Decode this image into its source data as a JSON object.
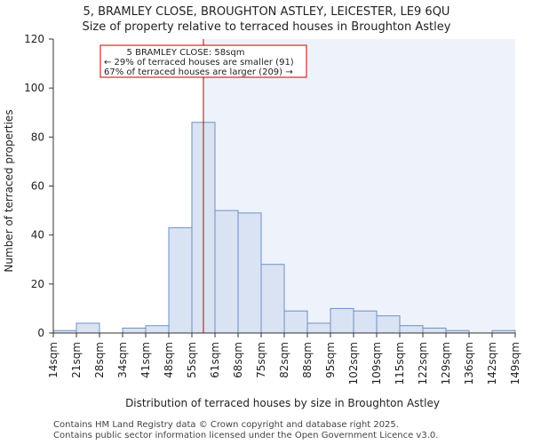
{
  "chart_data": {
    "type": "bar",
    "title": [
      "5, BRAMLEY CLOSE, BROUGHTON ASTLEY, LEICESTER, LE9 6QU",
      "Size of property relative to terraced houses in Broughton Astley"
    ],
    "xlabel": "Distribution of terraced houses by size in Broughton Astley",
    "ylabel": "Number of terraced properties",
    "ylim": [
      0,
      120
    ],
    "yticks": [
      0,
      20,
      40,
      60,
      80,
      100,
      120
    ],
    "xticks": [
      "14sqm",
      "21sqm",
      "28sqm",
      "34sqm",
      "41sqm",
      "48sqm",
      "55sqm",
      "61sqm",
      "68sqm",
      "75sqm",
      "82sqm",
      "88sqm",
      "95sqm",
      "102sqm",
      "109sqm",
      "115sqm",
      "122sqm",
      "129sqm",
      "136sqm",
      "142sqm",
      "149sqm"
    ],
    "values": [
      1,
      4,
      0,
      2,
      3,
      43,
      86,
      50,
      49,
      28,
      9,
      4,
      10,
      9,
      7,
      3,
      2,
      1,
      0,
      1
    ],
    "marker_position_bins": 6.5,
    "annotation": [
      "5 BRAMLEY CLOSE: 58sqm",
      "← 29% of terraced houses are smaller (91)",
      "67% of terraced houses are larger (209) →"
    ],
    "colors": {
      "bar_fill": "#dae3f3",
      "bar_stroke": "#6f8fc4",
      "highlight_bg": "#eef2fb",
      "marker": "#c00000",
      "axis": "#333333"
    }
  },
  "footer": {
    "line1": "Contains HM Land Registry data © Crown copyright and database right 2025.",
    "line2": "Contains public sector information licensed under the Open Government Licence v3.0."
  }
}
